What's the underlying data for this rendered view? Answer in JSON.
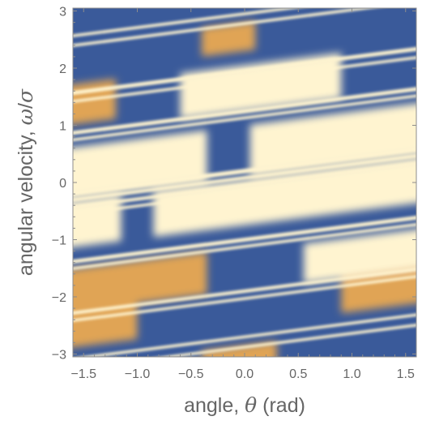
{
  "chart_data": {
    "type": "heatmap",
    "title": "",
    "xlabel": {
      "prefix": "angle, ",
      "symbol": "θ",
      "suffix": " (rad)"
    },
    "ylabel": {
      "prefix": "angular velocity, ",
      "symbol": "ω",
      "mid": "/",
      "symbol2": "σ"
    },
    "xlim": [
      -1.6,
      1.6
    ],
    "ylim": [
      -3.05,
      3.05
    ],
    "xticks": [
      -1.5,
      -1.0,
      -0.5,
      0.0,
      0.5,
      1.0,
      1.5
    ],
    "xtick_labels": [
      "−1.5",
      "−1.0",
      "−0.5",
      "0.0",
      "0.5",
      "1.0",
      "1.5"
    ],
    "yticks": [
      -3,
      -2,
      -1,
      0,
      1,
      2,
      3
    ],
    "ytick_labels": [
      "−3",
      "−2",
      "−1",
      "0",
      "1",
      "2",
      "3"
    ],
    "colormap": {
      "low": "#3a5a9a",
      "mid": "#e0a455",
      "high": "#fff4d0"
    },
    "stripe_slope": 0.24,
    "grid": false
  }
}
